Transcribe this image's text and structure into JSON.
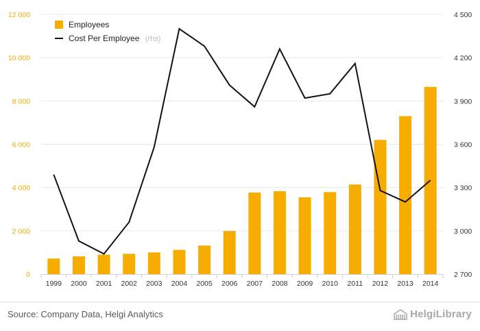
{
  "chart_data": {
    "type": "bar+line",
    "categories": [
      "1999",
      "2000",
      "2001",
      "2002",
      "2003",
      "2004",
      "2005",
      "2006",
      "2007",
      "2008",
      "2009",
      "2010",
      "2011",
      "2012",
      "2013",
      "2014"
    ],
    "series": [
      {
        "name": "Employees",
        "type": "bar",
        "axis": "left",
        "color": "#f7ad00",
        "values": [
          720,
          820,
          900,
          940,
          1000,
          1120,
          1320,
          1990,
          3770,
          3830,
          3550,
          3790,
          4140,
          6200,
          7300,
          8650
        ]
      },
      {
        "name": "Cost Per Employee",
        "legend_suffix": "(rhs)",
        "type": "line",
        "axis": "right",
        "color": "#111111",
        "values": [
          3390,
          2930,
          2840,
          3060,
          3580,
          4400,
          4280,
          4010,
          3860,
          4260,
          3920,
          3950,
          4160,
          3280,
          3200,
          3350
        ]
      }
    ],
    "y_left": {
      "ylim": [
        0,
        12000
      ],
      "ticks": [
        0,
        2000,
        4000,
        6000,
        8000,
        10000,
        12000
      ],
      "tick_labels": [
        "0",
        "2 000",
        "4 000",
        "6 000",
        "8 000",
        "10 000",
        "12 000"
      ],
      "color": "#f5ac00"
    },
    "y_right": {
      "ylim": [
        2700,
        4500
      ],
      "ticks": [
        2700,
        3000,
        3300,
        3600,
        3900,
        4200,
        4500
      ],
      "tick_labels": [
        "2 700",
        "3 000",
        "3 300",
        "3 600",
        "3 900",
        "4 200",
        "4 500"
      ]
    },
    "grid": true,
    "legend_position": "top-left"
  },
  "footer": {
    "source": "Source: Company Data, Helgi Analytics",
    "logo_text": "HelgiLibrary",
    "logo_icon": "building-icon"
  }
}
